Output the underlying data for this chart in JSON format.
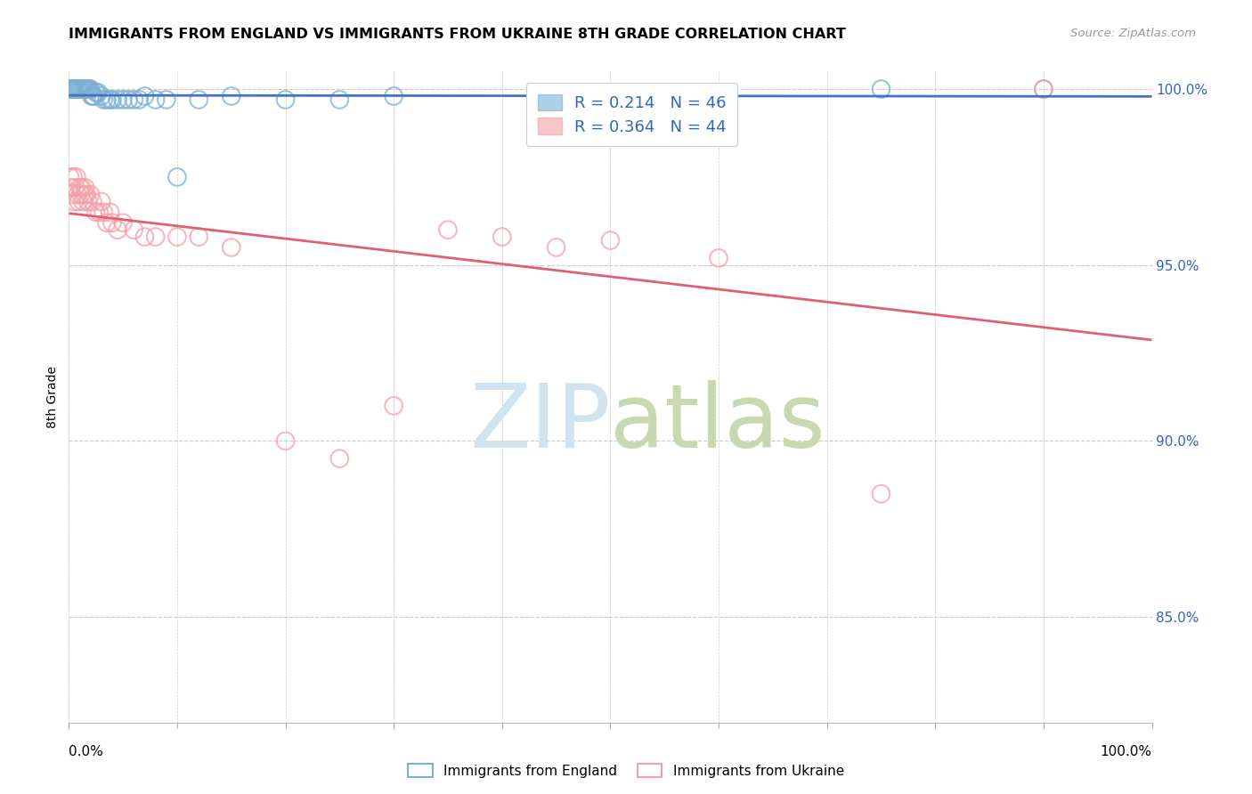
{
  "title": "IMMIGRANTS FROM ENGLAND VS IMMIGRANTS FROM UKRAINE 8TH GRADE CORRELATION CHART",
  "source": "Source: ZipAtlas.com",
  "ylabel": "8th Grade",
  "xlim": [
    0.0,
    1.0
  ],
  "ylim": [
    0.82,
    1.005
  ],
  "yticks": [
    0.85,
    0.9,
    0.95,
    1.0
  ],
  "ytick_labels": [
    "85.0%",
    "90.0%",
    "95.0%",
    "100.0%"
  ],
  "england_R": 0.214,
  "england_N": 46,
  "ukraine_R": 0.364,
  "ukraine_N": 44,
  "england_color": "#7BAFD4",
  "ukraine_color": "#F4A0A8",
  "england_line_color": "#4472C4",
  "ukraine_line_color": "#E06070",
  "watermark_zip_color": "#D0E4F0",
  "watermark_atlas_color": "#C8D8B0",
  "england_x": [
    0.001,
    0.002,
    0.003,
    0.004,
    0.005,
    0.006,
    0.007,
    0.008,
    0.009,
    0.01,
    0.011,
    0.012,
    0.013,
    0.014,
    0.015,
    0.016,
    0.017,
    0.018,
    0.019,
    0.02,
    0.021,
    0.022,
    0.023,
    0.025,
    0.027,
    0.03,
    0.032,
    0.035,
    0.038,
    0.04,
    0.045,
    0.05,
    0.055,
    0.06,
    0.065,
    0.07,
    0.08,
    0.09,
    0.1,
    0.12,
    0.15,
    0.2,
    0.25,
    0.3,
    0.75,
    0.9
  ],
  "england_y": [
    1.0,
    1.0,
    1.0,
    1.0,
    1.0,
    1.0,
    1.0,
    1.0,
    1.0,
    1.0,
    1.0,
    1.0,
    1.0,
    1.0,
    1.0,
    1.0,
    1.0,
    1.0,
    1.0,
    1.0,
    0.998,
    0.998,
    0.998,
    0.999,
    0.999,
    0.998,
    0.997,
    0.997,
    0.997,
    0.997,
    0.997,
    0.997,
    0.997,
    0.997,
    0.997,
    0.998,
    0.997,
    0.997,
    0.975,
    0.997,
    0.998,
    0.997,
    0.997,
    0.998,
    1.0,
    1.0
  ],
  "ukraine_x": [
    0.001,
    0.002,
    0.003,
    0.004,
    0.005,
    0.006,
    0.007,
    0.008,
    0.009,
    0.01,
    0.011,
    0.012,
    0.013,
    0.014,
    0.015,
    0.016,
    0.018,
    0.02,
    0.022,
    0.025,
    0.028,
    0.03,
    0.032,
    0.035,
    0.038,
    0.04,
    0.045,
    0.05,
    0.06,
    0.07,
    0.08,
    0.1,
    0.12,
    0.15,
    0.2,
    0.25,
    0.3,
    0.35,
    0.4,
    0.45,
    0.5,
    0.6,
    0.75,
    0.9
  ],
  "ukraine_y": [
    0.975,
    0.972,
    0.97,
    0.975,
    0.968,
    0.972,
    0.975,
    0.97,
    0.968,
    0.972,
    0.97,
    0.972,
    0.968,
    0.97,
    0.972,
    0.97,
    0.968,
    0.97,
    0.968,
    0.965,
    0.965,
    0.968,
    0.965,
    0.962,
    0.965,
    0.962,
    0.96,
    0.962,
    0.96,
    0.958,
    0.958,
    0.958,
    0.958,
    0.955,
    0.9,
    0.895,
    0.91,
    0.96,
    0.958,
    0.955,
    0.957,
    0.952,
    0.885,
    1.0
  ]
}
